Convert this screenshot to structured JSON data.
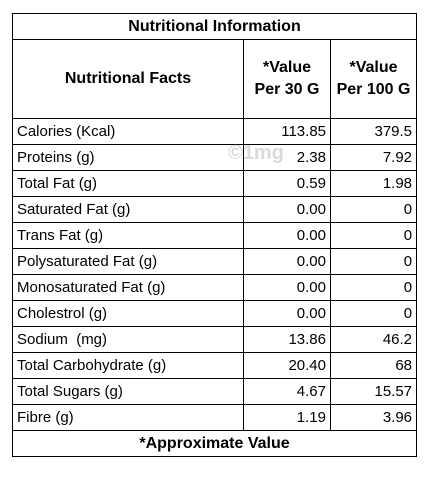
{
  "title": "Nutritional Information",
  "header": [
    "Nutritional Facts",
    "*Value Per 30 G",
    "*Value Per 100 G"
  ],
  "rows": [
    [
      "Calories (Kcal)",
      "113.85",
      "379.5"
    ],
    [
      "Proteins (g)",
      "2.38",
      "7.92"
    ],
    [
      "Total Fat (g)",
      "0.59",
      "1.98"
    ],
    [
      "Saturated Fat (g)",
      "0.00",
      "0"
    ],
    [
      "Trans Fat (g)",
      "0.00",
      "0"
    ],
    [
      "Polysaturated Fat (g)",
      "0.00",
      "0"
    ],
    [
      "Monosaturated Fat (g)",
      "0.00",
      "0"
    ],
    [
      "Cholestrol (g)",
      "0.00",
      "0"
    ],
    [
      "Sodium  (mg)",
      "13.86",
      "46.2"
    ],
    [
      "Total Carbohydrate (g)",
      "20.40",
      "68"
    ],
    [
      "Total Sugars (g)",
      "4.67",
      "15.57"
    ],
    [
      "Fibre (g)",
      "1.19",
      "3.96"
    ]
  ],
  "footer": "*Approximate Value",
  "watermark": "©1mg"
}
